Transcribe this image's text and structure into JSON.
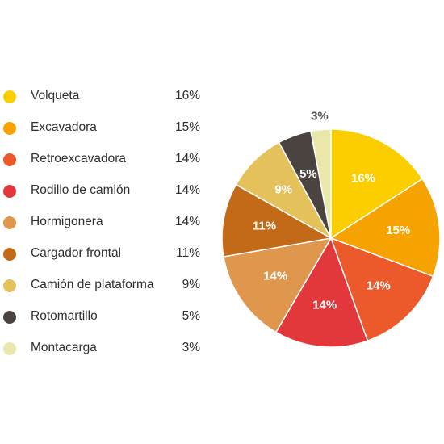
{
  "chart_data": {
    "type": "pie",
    "title": "",
    "slices": [
      {
        "label": "Volqueta",
        "value": 16,
        "display": "16%",
        "color": "#fcce00"
      },
      {
        "label": "Excavadora",
        "value": 15,
        "display": "15%",
        "color": "#f6a200"
      },
      {
        "label": "Retroexcavadora",
        "value": 14,
        "display": "14%",
        "color": "#ec5a2c"
      },
      {
        "label": "Rodillo de camión",
        "value": 14,
        "display": "14%",
        "color": "#e3383b"
      },
      {
        "label": "Hormigonera",
        "value": 14,
        "display": "14%",
        "color": "#df964d"
      },
      {
        "label": "Cargador frontal",
        "value": 11,
        "display": "11%",
        "color": "#c36a18"
      },
      {
        "label": "Camión de plataforma",
        "value": 9,
        "display": "9%",
        "color": "#e4c15a"
      },
      {
        "label": "Rotomartillo",
        "value": 5,
        "display": "5%",
        "color": "#4b4340"
      },
      {
        "label": "Montacarga",
        "value": 3,
        "display": "3%",
        "color": "#e9e7a9"
      }
    ],
    "legend_position": "left",
    "label_text_color": "#ffffff",
    "outside_label_color": "#555555"
  }
}
